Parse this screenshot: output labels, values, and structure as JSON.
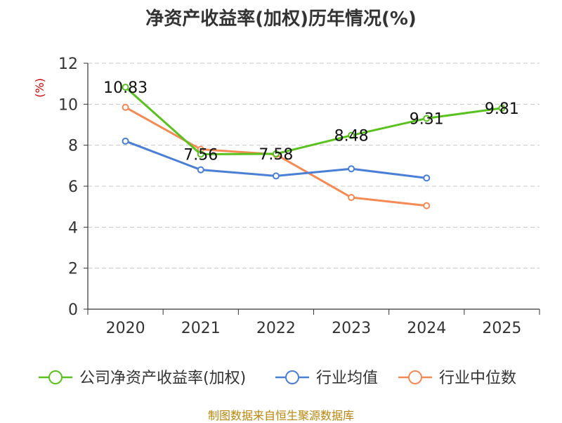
{
  "chart_data": {
    "type": "line",
    "title": "净资产收益率(加权)历年情况(%)",
    "ylabel": "(%)",
    "xlabel": "",
    "categories": [
      "2020",
      "2021",
      "2022",
      "2023",
      "2024",
      "2025"
    ],
    "ylim": [
      0,
      12
    ],
    "yticks": [
      0,
      2,
      4,
      6,
      8,
      10,
      12
    ],
    "grid": true,
    "legend_position": "bottom",
    "series": [
      {
        "name": "公司净资产收益率(加权)",
        "color": "#5ac21f",
        "values": [
          10.83,
          7.56,
          7.58,
          8.48,
          9.31,
          9.81
        ],
        "labels": [
          "10.83",
          "7.56",
          "7.58",
          "8.48",
          "9.31",
          "9.81"
        ]
      },
      {
        "name": "行业均值",
        "color": "#4a7fd6",
        "values": [
          8.2,
          6.8,
          6.5,
          6.85,
          6.4,
          null
        ]
      },
      {
        "name": "行业中位数",
        "color": "#f58a55",
        "values": [
          9.85,
          7.8,
          7.55,
          5.45,
          5.05,
          null
        ]
      }
    ]
  },
  "source": "制图数据来自恒生聚源数据库"
}
